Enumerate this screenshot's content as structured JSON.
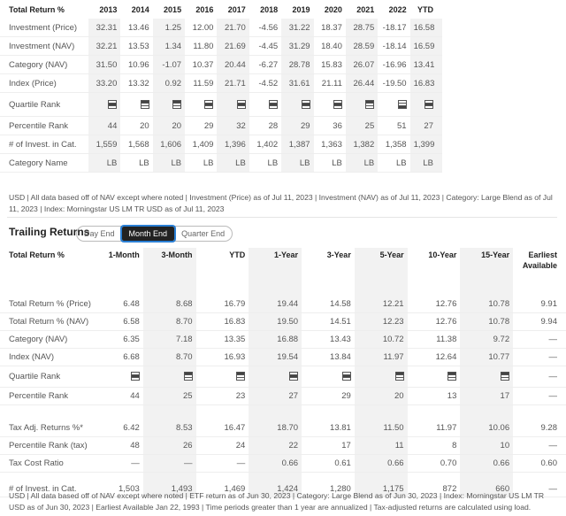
{
  "annual": {
    "headers": [
      "Total Return %",
      "2013",
      "2014",
      "2015",
      "2016",
      "2017",
      "2018",
      "2019",
      "2020",
      "2021",
      "2022",
      "YTD"
    ],
    "rows": [
      {
        "label": "Investment (Price)",
        "values": [
          "32.31",
          "13.46",
          "1.25",
          "12.00",
          "21.70",
          "-4.56",
          "31.22",
          "18.37",
          "28.75",
          "-18.17",
          "16.58"
        ]
      },
      {
        "label": "Investment (NAV)",
        "values": [
          "32.21",
          "13.53",
          "1.34",
          "11.80",
          "21.69",
          "-4.45",
          "31.29",
          "18.40",
          "28.59",
          "-18.14",
          "16.59"
        ]
      },
      {
        "label": "Category (NAV)",
        "values": [
          "31.50",
          "10.96",
          "-1.07",
          "10.37",
          "20.44",
          "-6.27",
          "28.78",
          "15.83",
          "26.07",
          "-16.96",
          "13.41"
        ]
      },
      {
        "label": "Index (Price)",
        "values": [
          "33.20",
          "13.32",
          "0.92",
          "11.59",
          "21.71",
          "-4.52",
          "31.61",
          "21.11",
          "26.44",
          "-19.50",
          "16.83"
        ]
      }
    ],
    "quartile_label": "Quartile Rank",
    "quartiles": [
      2,
      1,
      1,
      2,
      2,
      2,
      2,
      2,
      1,
      3,
      2
    ],
    "rows2": [
      {
        "label": "Percentile Rank",
        "values": [
          "44",
          "20",
          "20",
          "29",
          "32",
          "28",
          "29",
          "36",
          "25",
          "51",
          "27"
        ]
      },
      {
        "label": "# of Invest. in Cat.",
        "values": [
          "1,559",
          "1,568",
          "1,606",
          "1,409",
          "1,396",
          "1,402",
          "1,387",
          "1,363",
          "1,382",
          "1,358",
          "1,399"
        ]
      },
      {
        "label": "Category Name",
        "values": [
          "LB",
          "LB",
          "LB",
          "LB",
          "LB",
          "LB",
          "LB",
          "LB",
          "LB",
          "LB",
          "LB"
        ]
      }
    ],
    "note": "USD | All data based off of NAV except where noted | Investment (Price) as of Jul 11, 2023 | Investment (NAV) as of Jul 11, 2023 | Category: Large Blend as of Jul 11, 2023 | Index: Morningstar US LM TR USD as of Jul 11, 2023"
  },
  "trailing": {
    "title": "Trailing Returns",
    "tabs": [
      "Day End",
      "Month End",
      "Quarter End"
    ],
    "active_tab": "Month End",
    "headers": [
      "Total Return %",
      "1-Month",
      "3-Month",
      "YTD",
      "1-Year",
      "3-Year",
      "5-Year",
      "10-Year",
      "15-Year",
      "Earliest Available"
    ],
    "rows": [
      {
        "label": "Total Return % (Price)",
        "values": [
          "6.48",
          "8.68",
          "16.79",
          "19.44",
          "14.58",
          "12.21",
          "12.76",
          "10.78",
          "9.91"
        ]
      },
      {
        "label": "Total Return % (NAV)",
        "values": [
          "6.58",
          "8.70",
          "16.83",
          "19.50",
          "14.51",
          "12.23",
          "12.76",
          "10.78",
          "9.94"
        ]
      },
      {
        "label": "Category (NAV)",
        "values": [
          "6.35",
          "7.18",
          "13.35",
          "16.88",
          "13.43",
          "10.72",
          "11.38",
          "9.72",
          "—"
        ]
      },
      {
        "label": "Index (NAV)",
        "values": [
          "6.68",
          "8.70",
          "16.93",
          "19.54",
          "13.84",
          "11.97",
          "12.64",
          "10.77",
          "—"
        ]
      }
    ],
    "quartile_label": "Quartile Rank",
    "quartiles": [
      2,
      1,
      1,
      2,
      2,
      1,
      1,
      1
    ],
    "quartile_last": "—",
    "percentile": {
      "label": "Percentile Rank",
      "values": [
        "44",
        "25",
        "23",
        "27",
        "29",
        "20",
        "13",
        "17",
        "—"
      ]
    },
    "tax_rows": [
      {
        "label": "Tax Adj. Returns %*",
        "values": [
          "6.42",
          "8.53",
          "16.47",
          "18.70",
          "13.81",
          "11.50",
          "11.97",
          "10.06",
          "9.28"
        ]
      },
      {
        "label": "Percentile Rank (tax)",
        "values": [
          "48",
          "26",
          "24",
          "22",
          "17",
          "11",
          "8",
          "10",
          "—"
        ]
      },
      {
        "label": "Tax Cost Ratio",
        "values": [
          "—",
          "—",
          "—",
          "0.66",
          "0.61",
          "0.66",
          "0.70",
          "0.66",
          "0.60"
        ]
      }
    ],
    "count": {
      "label": "# of Invest. in Cat.",
      "values": [
        "1,503",
        "1,493",
        "1,469",
        "1,424",
        "1,280",
        "1,175",
        "872",
        "660",
        "—"
      ]
    },
    "note": "USD | All data based off of NAV except where noted | ETF return as of Jun 30, 2023 | Category: Large Blend as of Jun 30, 2023 | Index: Morningstar US LM TR USD as of Jun 30, 2023 | Earliest Available Jan 22, 1993 | Time periods greater than 1 year are annualized | Tax-adjusted returns are calculated using load."
  }
}
